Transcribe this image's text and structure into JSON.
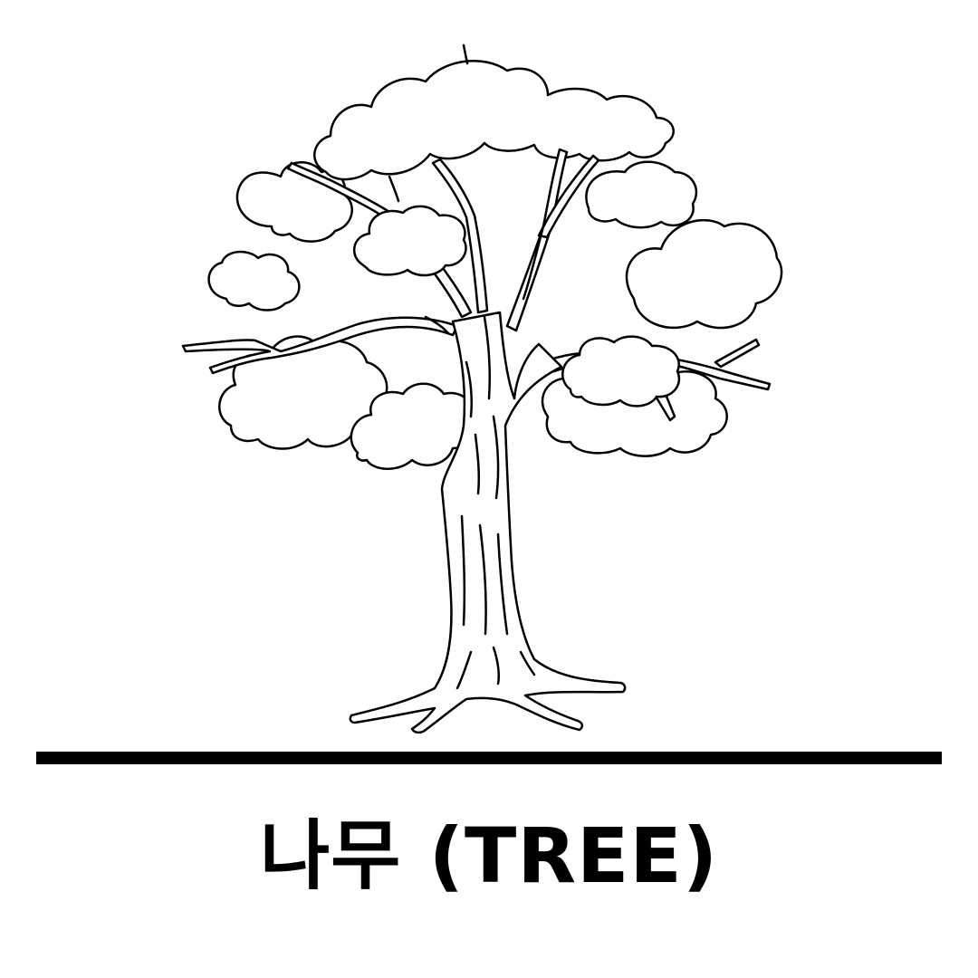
{
  "illustration": {
    "subject": "tree-icon",
    "stroke_color": "#000000",
    "fill_color": "#ffffff"
  },
  "caption": {
    "text": "나무 (TREE)"
  },
  "ground_line": {
    "color": "#000000"
  }
}
